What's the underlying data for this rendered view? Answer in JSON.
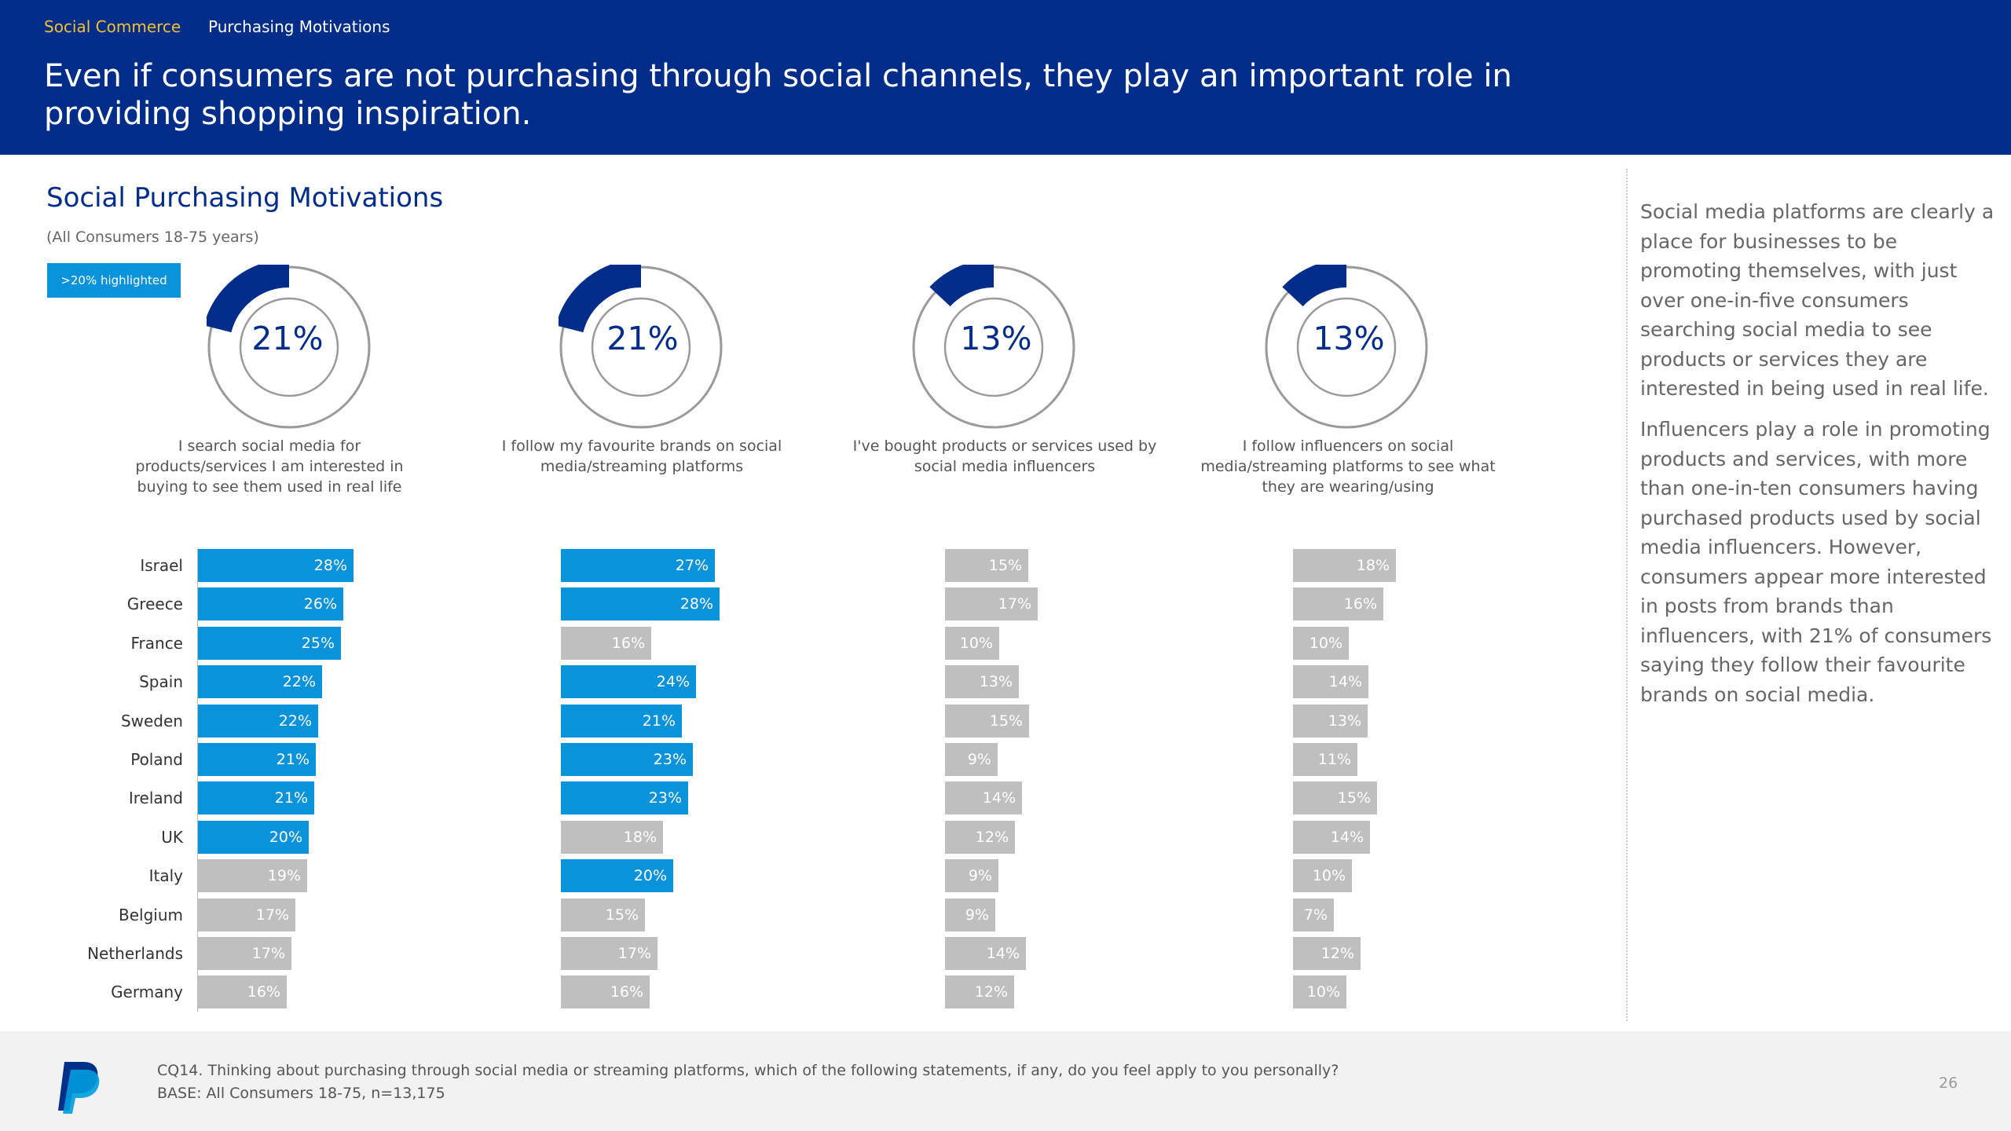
{
  "header": {
    "breadcrumb_1": "Social Commerce",
    "breadcrumb_2": "Purchasing Motivations",
    "headline": "Even if consumers are not purchasing through social channels, they play an important role in providing shopping inspiration."
  },
  "colors": {
    "navy": "#002C8A",
    "highlight": "#0A92DB",
    "muted": "#BFBFBF",
    "breadcrumb_accent": "#F2C230"
  },
  "chart_data": {
    "type": "bar",
    "title": "Social Purchasing Motivations",
    "subtitle": "(All Consumers 18-75 years)",
    "legend": ">20% highlighted",
    "highlight_threshold": 20,
    "categories": [
      "Israel",
      "Greece",
      "France",
      "Spain",
      "Sweden",
      "Poland",
      "Ireland",
      "UK",
      "Italy",
      "Belgium",
      "Netherlands",
      "Germany"
    ],
    "series": [
      {
        "name": "I search social media for products/services I am interested in buying to see them used in real life",
        "total": 21,
        "total_label": "21%",
        "values": [
          28,
          26,
          25,
          22,
          22,
          21,
          21,
          20,
          19,
          17,
          17,
          16
        ],
        "labels": [
          "28%",
          "26%",
          "25%",
          "22%",
          "22%",
          "21%",
          "21%",
          "20%",
          "19%",
          "17%",
          "17%",
          "16%"
        ]
      },
      {
        "name": "I follow my favourite brands on social media/streaming platforms",
        "total": 21,
        "total_label": "21%",
        "values": [
          27,
          28,
          16,
          24,
          21,
          23,
          23,
          18,
          20,
          15,
          17,
          16
        ],
        "labels": [
          "27%",
          "28%",
          "16%",
          "24%",
          "21%",
          "23%",
          "23%",
          "18%",
          "20%",
          "15%",
          "17%",
          "16%"
        ]
      },
      {
        "name": "I've bought products or services used by social media influencers",
        "total": 13,
        "total_label": "13%",
        "values": [
          15,
          17,
          10,
          13,
          15,
          9,
          14,
          12,
          9,
          9,
          14,
          12
        ],
        "labels": [
          "15%",
          "17%",
          "10%",
          "13%",
          "15%",
          "9%",
          "14%",
          "12%",
          "9%",
          "9%",
          "14%",
          "12%"
        ]
      },
      {
        "name": "I follow influencers on social media/streaming platforms to see what they are wearing/using",
        "total": 13,
        "total_label": "13%",
        "values": [
          18,
          16,
          10,
          14,
          13,
          11,
          15,
          14,
          10,
          7,
          12,
          10
        ],
        "labels": [
          "18%",
          "16%",
          "10%",
          "14%",
          "13%",
          "11%",
          "15%",
          "14%",
          "10%",
          "7%",
          "12%",
          "10%"
        ]
      }
    ]
  },
  "sidebar": {
    "para_1": "Social media platforms are clearly a place for businesses to be promoting themselves, with just over one-in-five consumers searching social media to see products or services they are interested in being used in real life.",
    "para_2": "Influencers play a role in promoting products and services, with more than one-in-ten consumers having purchased products used by social media influencers. However, consumers appear more interested in posts from brands than influencers, with 21% of consumers saying they follow their favourite brands on social media."
  },
  "footer": {
    "question": "CQ14. Thinking about purchasing through social media or streaming platforms, which of the following statements, if any, do you feel apply to you personally?",
    "base": "BASE: All Consumers 18-75, n=13,175",
    "page_number": "26",
    "logo_icon": "paypal-logo-icon"
  }
}
